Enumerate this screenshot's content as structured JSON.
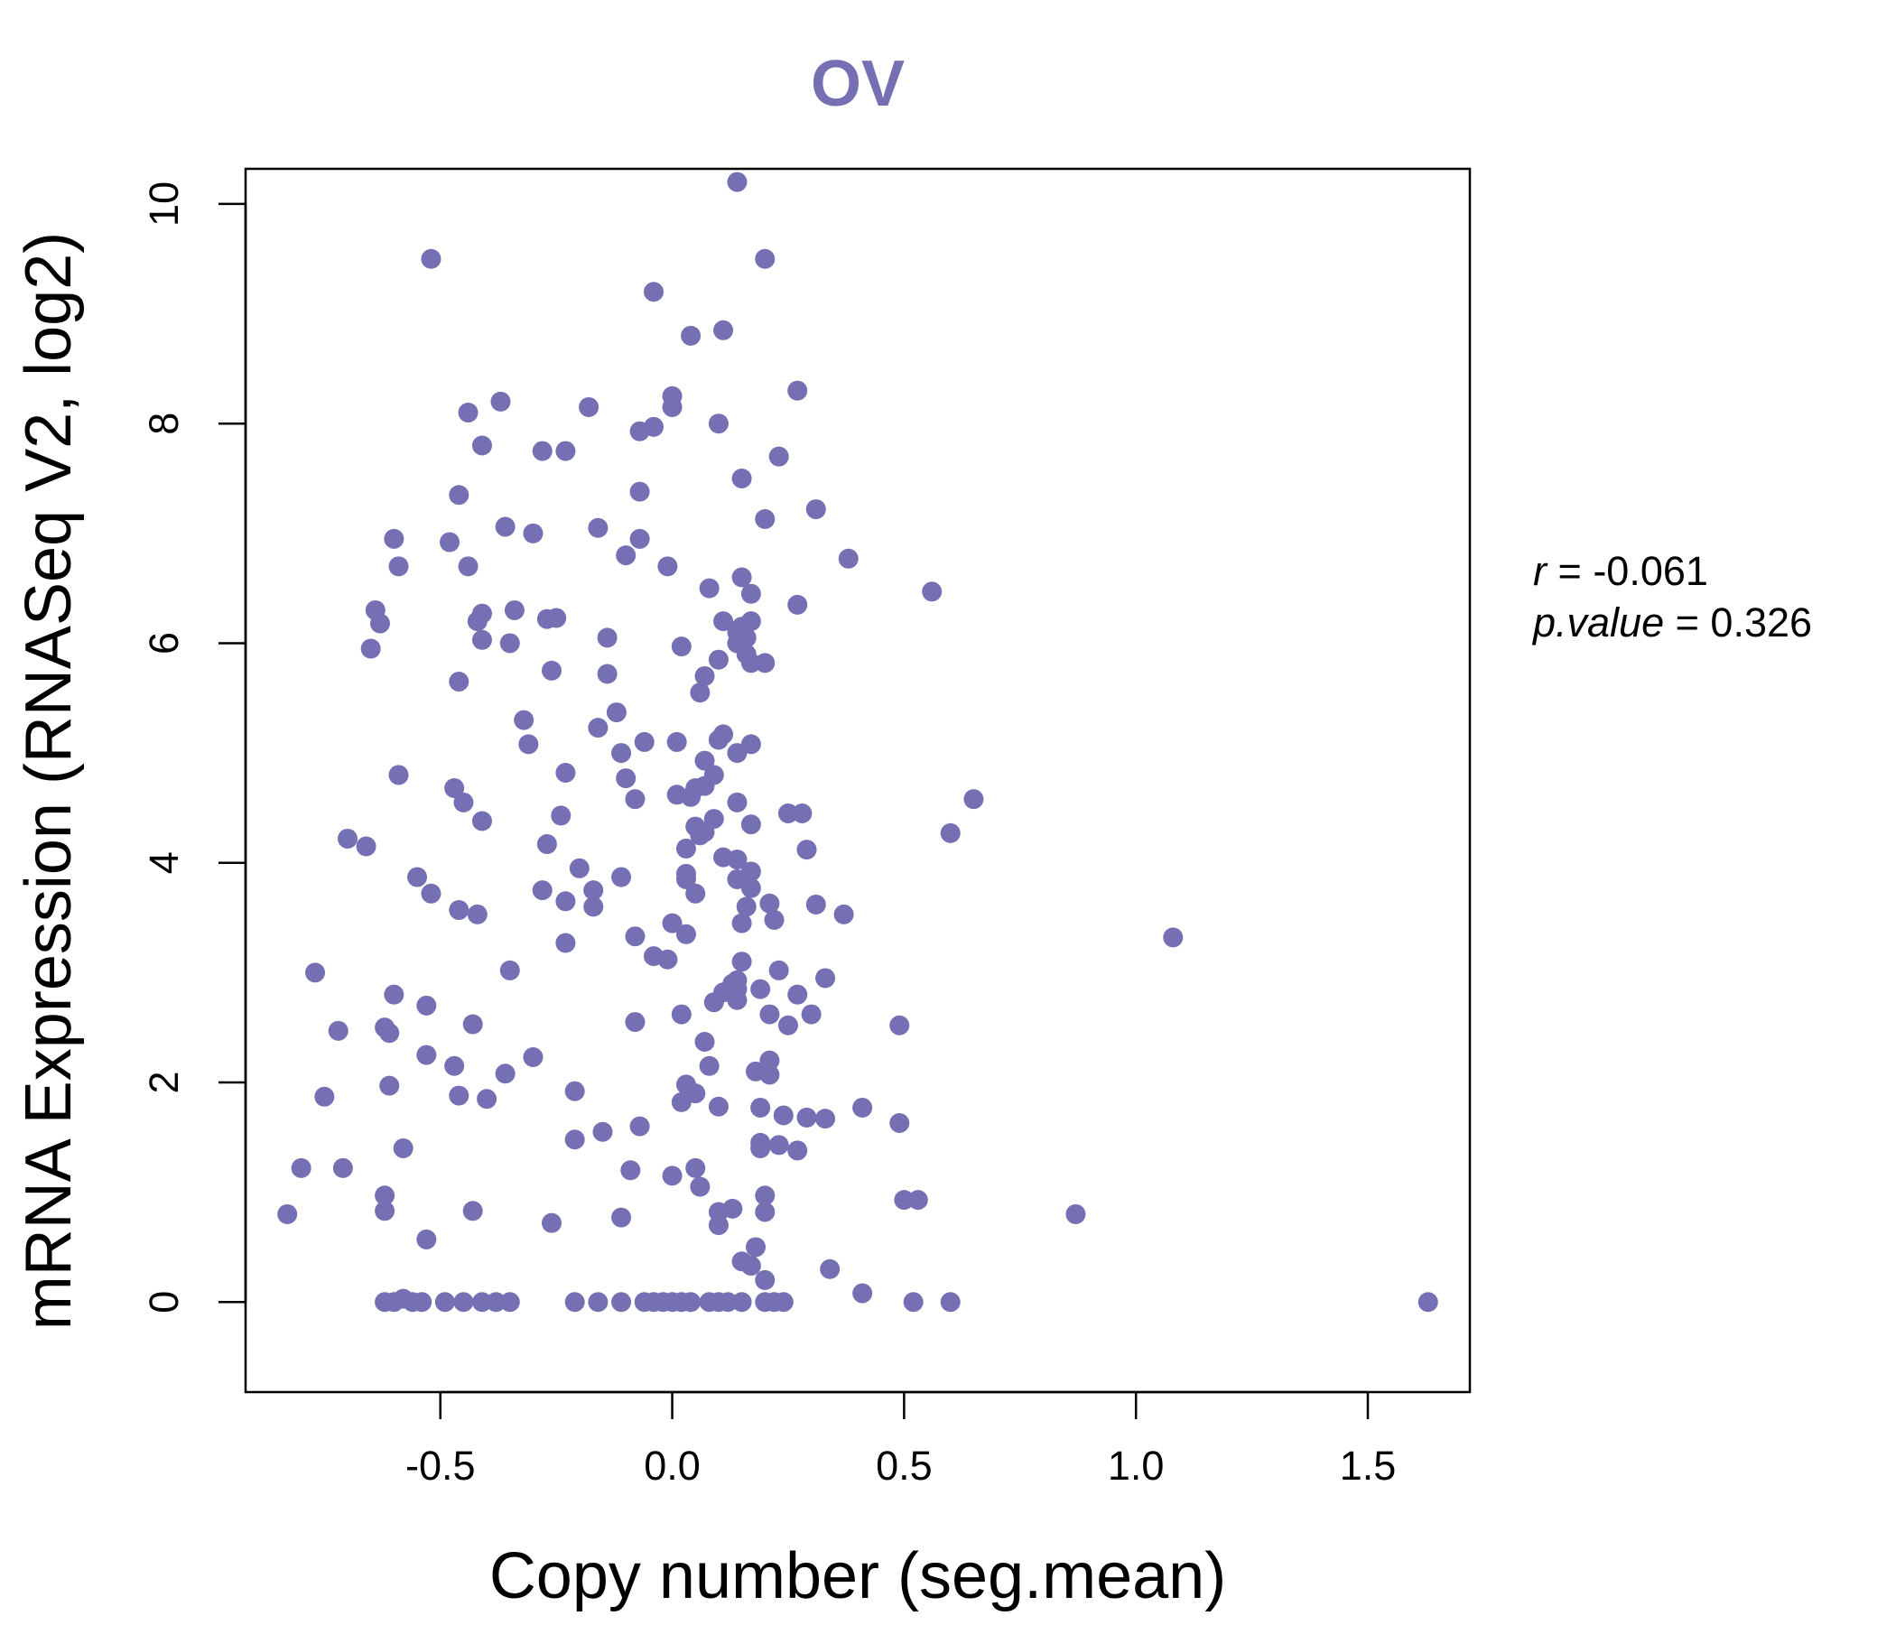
{
  "chart_data": {
    "type": "scatter",
    "title": "OV",
    "xlabel": "Copy number (seg.mean)",
    "ylabel": "mRNA Expression (RNASeq V2, log2)",
    "xlim": [
      -0.92,
      1.72
    ],
    "ylim": [
      -0.82,
      10.32
    ],
    "xticks": [
      -0.5,
      0.0,
      0.5,
      1.0,
      1.5
    ],
    "xtick_labels": [
      "-0.5",
      "0.0",
      "0.5",
      "1.0",
      "1.5"
    ],
    "yticks": [
      0,
      2,
      4,
      6,
      8,
      10
    ],
    "ytick_labels": [
      "0",
      "2",
      "4",
      "6",
      "8",
      "10"
    ],
    "stats": {
      "r_label": "r",
      "r_value": "-0.061",
      "p_label": "p.value",
      "p_value": "0.326"
    },
    "colors": {
      "points": "#7570B3",
      "title": "#7570B3",
      "axes": "#000000"
    },
    "points": [
      [
        0.14,
        10.2
      ],
      [
        -0.52,
        9.5
      ],
      [
        0.2,
        9.5
      ],
      [
        -0.04,
        9.2
      ],
      [
        0.04,
        8.8
      ],
      [
        0.11,
        8.85
      ],
      [
        0.27,
        8.3
      ],
      [
        0.0,
        8.25
      ],
      [
        0.0,
        8.15
      ],
      [
        -0.37,
        8.2
      ],
      [
        -0.44,
        8.1
      ],
      [
        -0.18,
        8.15
      ],
      [
        0.1,
        8.0
      ],
      [
        -0.04,
        7.97
      ],
      [
        -0.07,
        7.93
      ],
      [
        -0.41,
        7.8
      ],
      [
        -0.28,
        7.75
      ],
      [
        -0.23,
        7.75
      ],
      [
        0.23,
        7.7
      ],
      [
        0.15,
        7.5
      ],
      [
        -0.07,
        7.38
      ],
      [
        -0.46,
        7.35
      ],
      [
        0.31,
        7.22
      ],
      [
        0.2,
        7.13
      ],
      [
        -0.36,
        7.06
      ],
      [
        -0.16,
        7.05
      ],
      [
        -0.3,
        7.0
      ],
      [
        -0.07,
        6.95
      ],
      [
        -0.6,
        6.95
      ],
      [
        -0.48,
        6.92
      ],
      [
        -0.1,
        6.8
      ],
      [
        0.38,
        6.77
      ],
      [
        -0.01,
        6.7
      ],
      [
        -0.44,
        6.7
      ],
      [
        -0.59,
        6.7
      ],
      [
        0.15,
        6.6
      ],
      [
        0.08,
        6.5
      ],
      [
        0.17,
        6.45
      ],
      [
        0.56,
        6.47
      ],
      [
        0.27,
        6.35
      ],
      [
        -0.64,
        6.3
      ],
      [
        -0.34,
        6.3
      ],
      [
        -0.41,
        6.27
      ],
      [
        -0.25,
        6.23
      ],
      [
        -0.27,
        6.22
      ],
      [
        -0.42,
        6.2
      ],
      [
        -0.63,
        6.18
      ],
      [
        0.11,
        6.2
      ],
      [
        0.15,
        6.15
      ],
      [
        0.17,
        6.2
      ],
      [
        0.14,
        6.1
      ],
      [
        0.16,
        6.05
      ],
      [
        -0.14,
        6.05
      ],
      [
        -0.41,
        6.03
      ],
      [
        -0.35,
        6.0
      ],
      [
        0.14,
        6.0
      ],
      [
        0.02,
        5.97
      ],
      [
        -0.65,
        5.95
      ],
      [
        0.16,
        5.9
      ],
      [
        0.1,
        5.85
      ],
      [
        0.17,
        5.82
      ],
      [
        0.2,
        5.82
      ],
      [
        -0.26,
        5.75
      ],
      [
        -0.14,
        5.72
      ],
      [
        0.07,
        5.7
      ],
      [
        -0.46,
        5.65
      ],
      [
        0.06,
        5.55
      ],
      [
        -0.12,
        5.37
      ],
      [
        -0.32,
        5.3
      ],
      [
        -0.16,
        5.23
      ],
      [
        0.11,
        5.17
      ],
      [
        0.1,
        5.12
      ],
      [
        -0.06,
        5.1
      ],
      [
        0.01,
        5.1
      ],
      [
        -0.31,
        5.08
      ],
      [
        0.17,
        5.08
      ],
      [
        -0.11,
        5.0
      ],
      [
        0.14,
        5.0
      ],
      [
        0.07,
        4.93
      ],
      [
        -0.23,
        4.82
      ],
      [
        -0.59,
        4.8
      ],
      [
        0.09,
        4.8
      ],
      [
        -0.1,
        4.77
      ],
      [
        0.07,
        4.7
      ],
      [
        -0.47,
        4.68
      ],
      [
        0.05,
        4.68
      ],
      [
        0.01,
        4.62
      ],
      [
        -0.08,
        4.58
      ],
      [
        0.04,
        4.6
      ],
      [
        0.65,
        4.58
      ],
      [
        0.14,
        4.55
      ],
      [
        -0.45,
        4.55
      ],
      [
        0.25,
        4.45
      ],
      [
        0.28,
        4.45
      ],
      [
        -0.24,
        4.43
      ],
      [
        0.09,
        4.4
      ],
      [
        -0.41,
        4.38
      ],
      [
        0.17,
        4.35
      ],
      [
        0.05,
        4.33
      ],
      [
        0.07,
        4.28
      ],
      [
        0.6,
        4.27
      ],
      [
        0.06,
        4.25
      ],
      [
        -0.7,
        4.22
      ],
      [
        -0.27,
        4.17
      ],
      [
        -0.66,
        4.15
      ],
      [
        0.03,
        4.13
      ],
      [
        0.29,
        4.12
      ],
      [
        0.11,
        4.05
      ],
      [
        0.14,
        4.03
      ],
      [
        -0.2,
        3.95
      ],
      [
        0.17,
        3.92
      ],
      [
        0.03,
        3.9
      ],
      [
        -0.55,
        3.87
      ],
      [
        -0.11,
        3.87
      ],
      [
        0.03,
        3.85
      ],
      [
        0.14,
        3.85
      ],
      [
        0.17,
        3.77
      ],
      [
        -0.28,
        3.75
      ],
      [
        -0.17,
        3.75
      ],
      [
        0.05,
        3.72
      ],
      [
        -0.52,
        3.72
      ],
      [
        -0.23,
        3.65
      ],
      [
        0.21,
        3.63
      ],
      [
        0.31,
        3.62
      ],
      [
        0.16,
        3.6
      ],
      [
        -0.17,
        3.6
      ],
      [
        -0.46,
        3.57
      ],
      [
        -0.42,
        3.53
      ],
      [
        0.37,
        3.53
      ],
      [
        0.22,
        3.48
      ],
      [
        0.15,
        3.45
      ],
      [
        0.0,
        3.45
      ],
      [
        0.03,
        3.35
      ],
      [
        -0.08,
        3.33
      ],
      [
        1.08,
        3.32
      ],
      [
        -0.23,
        3.27
      ],
      [
        -0.04,
        3.15
      ],
      [
        -0.01,
        3.12
      ],
      [
        0.15,
        3.1
      ],
      [
        -0.35,
        3.02
      ],
      [
        0.23,
        3.02
      ],
      [
        -0.77,
        3.0
      ],
      [
        0.33,
        2.95
      ],
      [
        0.14,
        2.93
      ],
      [
        0.13,
        2.9
      ],
      [
        0.14,
        2.85
      ],
      [
        0.19,
        2.85
      ],
      [
        0.11,
        2.82
      ],
      [
        -0.6,
        2.8
      ],
      [
        0.27,
        2.8
      ],
      [
        0.14,
        2.75
      ],
      [
        0.09,
        2.73
      ],
      [
        -0.53,
        2.7
      ],
      [
        0.21,
        2.62
      ],
      [
        0.02,
        2.62
      ],
      [
        0.3,
        2.62
      ],
      [
        -0.08,
        2.55
      ],
      [
        -0.43,
        2.53
      ],
      [
        0.25,
        2.52
      ],
      [
        0.49,
        2.52
      ],
      [
        -0.62,
        2.5
      ],
      [
        -0.72,
        2.47
      ],
      [
        -0.61,
        2.45
      ],
      [
        0.07,
        2.37
      ],
      [
        -0.3,
        2.23
      ],
      [
        -0.53,
        2.25
      ],
      [
        0.21,
        2.2
      ],
      [
        0.08,
        2.15
      ],
      [
        -0.47,
        2.15
      ],
      [
        0.18,
        2.1
      ],
      [
        0.21,
        2.07
      ],
      [
        -0.36,
        2.08
      ],
      [
        0.03,
        1.98
      ],
      [
        -0.61,
        1.97
      ],
      [
        0.05,
        1.9
      ],
      [
        -0.21,
        1.92
      ],
      [
        -0.46,
        1.88
      ],
      [
        -0.75,
        1.87
      ],
      [
        -0.4,
        1.85
      ],
      [
        0.02,
        1.82
      ],
      [
        0.1,
        1.78
      ],
      [
        0.19,
        1.77
      ],
      [
        0.41,
        1.77
      ],
      [
        0.24,
        1.7
      ],
      [
        0.29,
        1.68
      ],
      [
        0.33,
        1.67
      ],
      [
        0.49,
        1.63
      ],
      [
        -0.07,
        1.6
      ],
      [
        -0.15,
        1.55
      ],
      [
        -0.21,
        1.48
      ],
      [
        0.19,
        1.45
      ],
      [
        0.23,
        1.43
      ],
      [
        0.19,
        1.4
      ],
      [
        -0.58,
        1.4
      ],
      [
        0.27,
        1.38
      ],
      [
        -0.8,
        1.22
      ],
      [
        -0.71,
        1.22
      ],
      [
        0.05,
        1.22
      ],
      [
        -0.09,
        1.2
      ],
      [
        0.0,
        1.15
      ],
      [
        0.06,
        1.05
      ],
      [
        0.2,
        0.97
      ],
      [
        -0.62,
        0.97
      ],
      [
        0.5,
        0.93
      ],
      [
        0.53,
        0.93
      ],
      [
        0.13,
        0.85
      ],
      [
        -0.62,
        0.83
      ],
      [
        -0.43,
        0.83
      ],
      [
        0.1,
        0.82
      ],
      [
        0.2,
        0.82
      ],
      [
        -0.83,
        0.8
      ],
      [
        0.87,
        0.8
      ],
      [
        -0.11,
        0.77
      ],
      [
        -0.26,
        0.72
      ],
      [
        0.1,
        0.7
      ],
      [
        -0.53,
        0.57
      ],
      [
        0.18,
        0.5
      ],
      [
        0.15,
        0.37
      ],
      [
        0.17,
        0.33
      ],
      [
        0.34,
        0.3
      ],
      [
        0.2,
        0.2
      ],
      [
        0.41,
        0.08
      ],
      [
        -0.62,
        0.0
      ],
      [
        -0.6,
        0.0
      ],
      [
        -0.58,
        0.03
      ],
      [
        -0.56,
        0.0
      ],
      [
        -0.54,
        0.0
      ],
      [
        -0.49,
        0.0
      ],
      [
        -0.45,
        0.0
      ],
      [
        -0.41,
        0.0
      ],
      [
        -0.38,
        0.0
      ],
      [
        -0.35,
        0.0
      ],
      [
        -0.21,
        0.0
      ],
      [
        -0.16,
        0.0
      ],
      [
        -0.11,
        0.0
      ],
      [
        -0.06,
        0.0
      ],
      [
        -0.04,
        0.0
      ],
      [
        -0.02,
        0.0
      ],
      [
        0.0,
        0.0
      ],
      [
        0.02,
        0.0
      ],
      [
        0.04,
        0.0
      ],
      [
        0.08,
        0.0
      ],
      [
        0.1,
        0.0
      ],
      [
        0.12,
        0.0
      ],
      [
        0.15,
        0.0
      ],
      [
        0.2,
        0.0
      ],
      [
        0.22,
        0.0
      ],
      [
        0.24,
        0.0
      ],
      [
        0.52,
        0.0
      ],
      [
        0.6,
        0.0
      ],
      [
        1.63,
        0.0
      ]
    ]
  }
}
